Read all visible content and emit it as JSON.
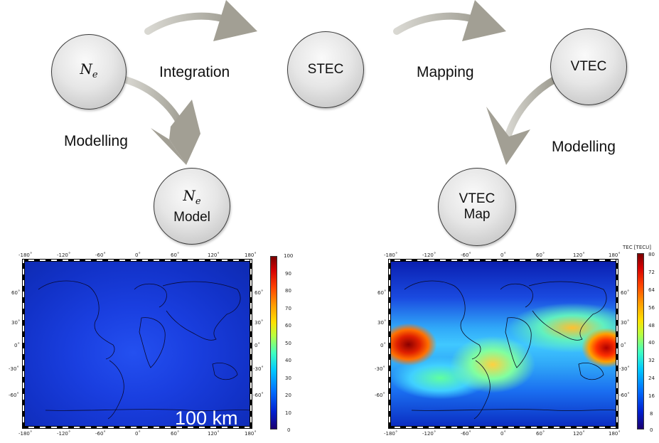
{
  "nodes": {
    "ne": {
      "symbol": "N",
      "sub": "e"
    },
    "stec": "STEC",
    "vtec": "VTEC",
    "ne_model": {
      "symbol": "N",
      "sub": "e",
      "text": "Model"
    },
    "vtec_map": {
      "line1": "VTEC",
      "line2": "Map"
    }
  },
  "edges": {
    "integration": "Integration",
    "mapping": "Mapping",
    "modelling_left": "Modelling",
    "modelling_right": "Modelling"
  },
  "left_map": {
    "lon_ticks": [
      "-180˚",
      "-120˚",
      "-60˚",
      "0˚",
      "60˚",
      "120˚",
      "180˚"
    ],
    "lat_ticks_left": [
      "60˚",
      "30˚",
      "0˚",
      "-30˚",
      "-60˚"
    ],
    "lat_ticks_right": [
      "60˚",
      "30˚",
      "0˚",
      "-30˚",
      "-60˚"
    ],
    "colorbar_ticks": [
      "100",
      "90",
      "80",
      "70",
      "60",
      "50",
      "40",
      "30",
      "20",
      "10",
      "0"
    ],
    "overlay": "100 km"
  },
  "right_map": {
    "lon_ticks": [
      "-180˚",
      "-120˚",
      "-60˚",
      "0˚",
      "60˚",
      "120˚",
      "180˚"
    ],
    "lat_ticks_left": [
      "60˚",
      "30˚",
      "0˚",
      "-30˚",
      "-60˚"
    ],
    "lat_ticks_right": [
      "60˚",
      "30˚",
      "0˚",
      "-30˚",
      "-60˚"
    ],
    "colorbar_title": "TEC [TECU]",
    "colorbar_ticks": [
      "80",
      "72",
      "64",
      "56",
      "48",
      "40",
      "32",
      "24",
      "16",
      "8",
      "0"
    ]
  },
  "colors": {
    "arrow": "#a8a69c",
    "left_map_fill": "#1437d8",
    "node_border": "#3a3a3a"
  }
}
